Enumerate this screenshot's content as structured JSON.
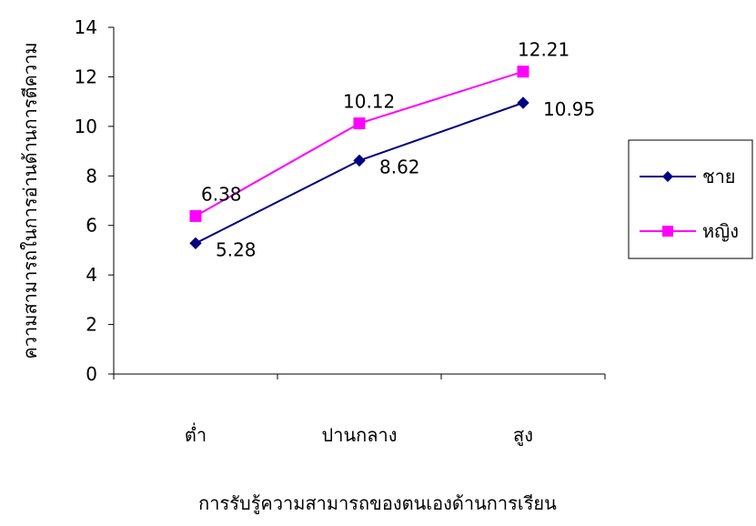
{
  "chart_data": {
    "type": "line",
    "categories": [
      "ต่ำ",
      "ปานกลาง",
      "สูง"
    ],
    "series": [
      {
        "name": "ชาย",
        "values": [
          5.28,
          8.62,
          10.95
        ],
        "labels": [
          "5.28",
          "8.62",
          "10.95"
        ],
        "color": "#000080",
        "marker": "diamond"
      },
      {
        "name": "หญิง",
        "values": [
          6.38,
          10.12,
          12.21
        ],
        "labels": [
          "6.38",
          "10.12",
          "12.21"
        ],
        "color": "#ff00ff",
        "marker": "square"
      }
    ],
    "xlabel": "การรับรู้ความสามารถของตนเองด้านการเรียน",
    "ylabel": "ความสามารถในการอ่านด้านการตีความ",
    "ylim": [
      0,
      14
    ],
    "yticks": [
      0,
      2,
      4,
      6,
      8,
      10,
      12,
      14
    ],
    "ytick_labels": [
      "0",
      "2",
      "4",
      "6",
      "8",
      "10",
      "12",
      "14"
    ],
    "grid": false,
    "legend": "right"
  }
}
